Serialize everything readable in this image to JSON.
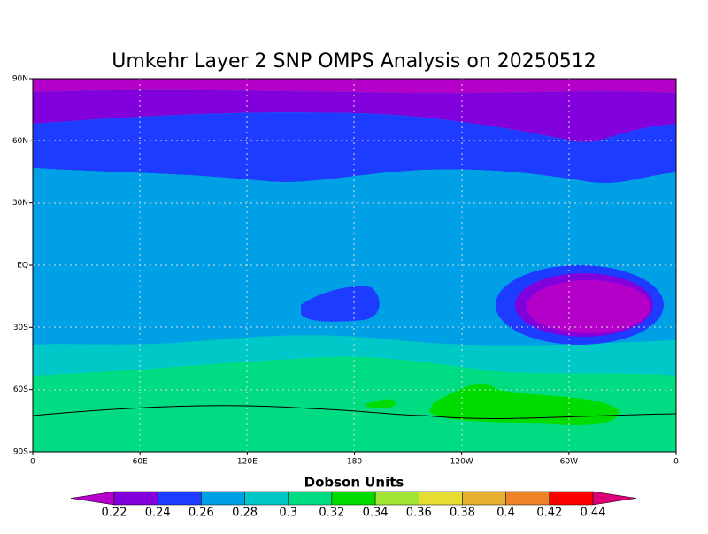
{
  "title": "Umkehr Layer 2 SNP OMPS Analysis on 20250512",
  "map": {
    "lat_labels": [
      "90N",
      "60N",
      "30N",
      "EQ",
      "30S",
      "60S",
      "90S"
    ],
    "lon_labels": [
      "0",
      "60E",
      "120E",
      "180",
      "120W",
      "60W",
      "0"
    ]
  },
  "colorbar": {
    "title": "Dobson Units",
    "labels": [
      "0.22",
      "0.24",
      "0.26",
      "0.28",
      "0.3",
      "0.32",
      "0.34",
      "0.36",
      "0.38",
      "0.4",
      "0.42",
      "0.44"
    ],
    "colors": [
      "#b400c8",
      "#8200dc",
      "#1e3cff",
      "#00a0e6",
      "#00c8c8",
      "#00dc82",
      "#00dc00",
      "#a0e632",
      "#e6dc32",
      "#e6af2d",
      "#f08228",
      "#fa0000",
      "#dc0078"
    ]
  }
}
